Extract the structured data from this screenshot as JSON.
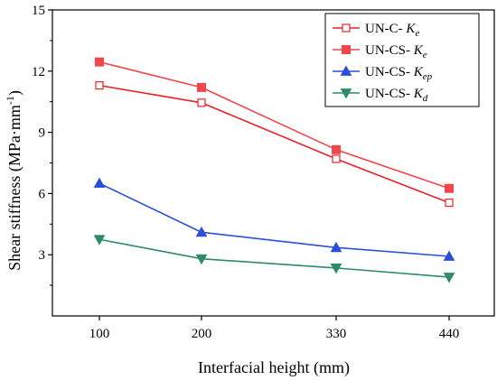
{
  "chart_data": {
    "type": "line",
    "xlabel": "Interfacial height (mm)",
    "ylabel": "Shear stiffness (MPa·mm",
    "ylabel_sup": "-1",
    "ylabel_close": ")",
    "categories": [
      "100",
      "200",
      "330",
      "440"
    ],
    "yticks": [
      "3",
      "6",
      "9",
      "12",
      "15"
    ],
    "ylim": [
      0,
      15
    ],
    "grid": false,
    "legend_position": "top-right",
    "series": [
      {
        "name": "UN-C- Ke",
        "legend_prefix": "UN-C- ",
        "legend_symbol": "K",
        "legend_sub": "e",
        "color": "#e8232b",
        "marker": "square-open",
        "values": [
          11.3,
          10.45,
          7.7,
          5.55
        ]
      },
      {
        "name": "UN-CS- Ke",
        "legend_prefix": "UN-CS- ",
        "legend_symbol": "K",
        "legend_sub": "e",
        "color": "#f0474d",
        "marker": "square",
        "values": [
          12.45,
          11.2,
          8.15,
          6.25
        ]
      },
      {
        "name": "UN-CS- Kep",
        "legend_prefix": "UN-CS- ",
        "legend_symbol": "K",
        "legend_sub": "ep",
        "color": "#2b4fd8",
        "marker": "triangle-up",
        "values": [
          6.5,
          4.1,
          3.35,
          2.92
        ]
      },
      {
        "name": "UN-CS- Kd",
        "legend_prefix": "UN-CS- ",
        "legend_symbol": "K",
        "legend_sub": "d",
        "color": "#2f8a66",
        "marker": "triangle-down",
        "values": [
          3.75,
          2.8,
          2.35,
          1.9
        ]
      }
    ]
  }
}
